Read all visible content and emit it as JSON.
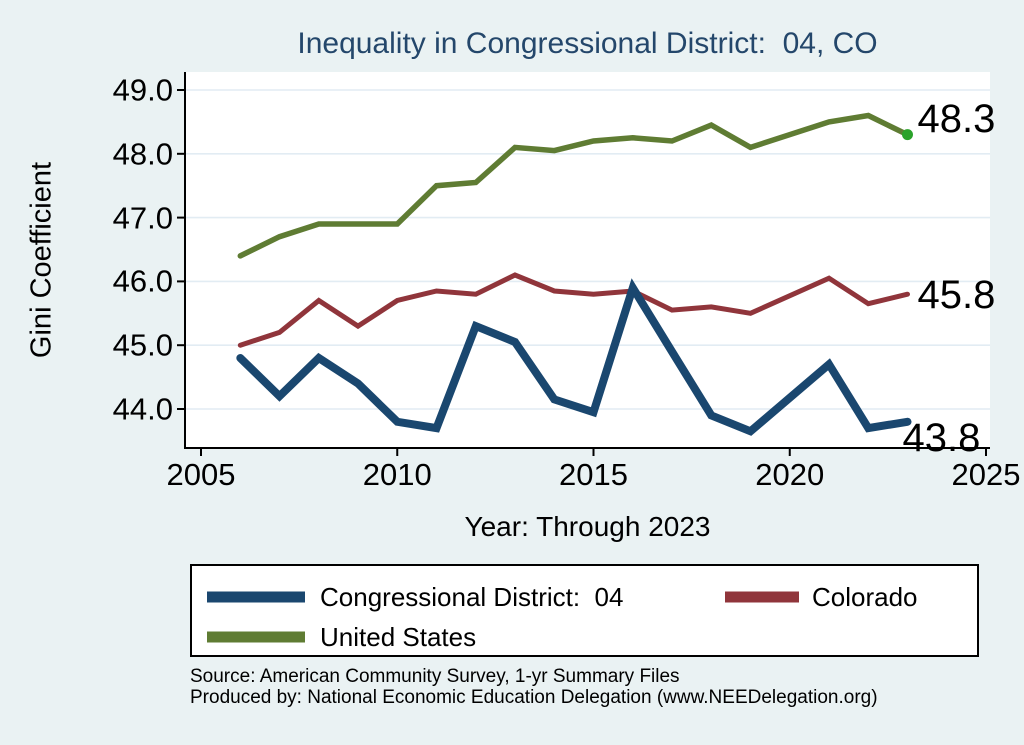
{
  "title": "Inequality in Congressional District:  04, CO",
  "y_axis": {
    "label": "Gini Coefficient",
    "ticks": [
      "49.0",
      "48.0",
      "47.0",
      "46.0",
      "45.0",
      "44.0"
    ]
  },
  "x_axis": {
    "label": "Year: Through 2023",
    "ticks": [
      "2005",
      "2010",
      "2015",
      "2020",
      "2025"
    ]
  },
  "legend": {
    "items": [
      {
        "label": "Congressional District:  04",
        "color": "#1a476f",
        "row": 1,
        "col": 1
      },
      {
        "label": "Colorado",
        "color": "#90353b",
        "row": 1,
        "col": 2
      },
      {
        "label": "United States",
        "color": "#5f7c33",
        "row": 2,
        "col": 1
      }
    ]
  },
  "source": {
    "line1": "Source: American Community Survey, 1-yr Summary Files",
    "line2": "Produced by: National Economic Education Delegation (www.NEEDelegation.org)"
  },
  "colors": {
    "background": "#eaf2f3",
    "plot_background": "#ffffff",
    "gridline": "#e2ecf3",
    "axis": "#000000",
    "title": "#24476b",
    "district_line": "#1a476f",
    "colorado_line": "#90353b",
    "us_line": "#5f7c33",
    "us_end_marker": "#2aa22a"
  },
  "chart_data": {
    "type": "line",
    "x": [
      2006,
      2007,
      2008,
      2009,
      2010,
      2011,
      2012,
      2013,
      2014,
      2015,
      2016,
      2017,
      2018,
      2019,
      2021,
      2022,
      2023
    ],
    "series": [
      {
        "name": "United States",
        "color": "#5f7c33",
        "stroke_width": 5.5,
        "values": [
          46.4,
          46.7,
          46.9,
          46.9,
          46.9,
          47.5,
          47.55,
          48.1,
          48.05,
          48.2,
          48.25,
          48.2,
          48.45,
          48.1,
          48.5,
          48.6,
          48.3
        ],
        "end_label": "48.3",
        "end_marker_color": "#2aa22a"
      },
      {
        "name": "Colorado",
        "color": "#90353b",
        "stroke_width": 5,
        "values": [
          45.0,
          45.2,
          45.7,
          45.3,
          45.7,
          45.85,
          45.8,
          46.1,
          45.85,
          45.8,
          45.85,
          45.55,
          45.6,
          45.5,
          46.05,
          45.65,
          45.8
        ],
        "end_label": "45.8"
      },
      {
        "name": "Congressional District:  04",
        "color": "#1a476f",
        "stroke_width": 8,
        "values": [
          44.8,
          44.2,
          44.8,
          44.4,
          43.8,
          43.7,
          45.3,
          45.05,
          44.15,
          43.95,
          45.9,
          44.9,
          43.9,
          43.65,
          44.7,
          43.7,
          43.8
        ],
        "end_label": "43.8"
      }
    ],
    "title": "Inequality in Congressional District:  04, CO",
    "xlabel": "Year: Through 2023",
    "ylabel": "Gini Coefficient",
    "xlim": [
      2004.6,
      2025.4
    ],
    "ylim": [
      43.4,
      49.3
    ],
    "x_ticks": [
      2005,
      2010,
      2015,
      2020,
      2025
    ],
    "y_ticks": [
      49.0,
      48.0,
      47.0,
      46.0,
      45.0,
      44.0
    ],
    "grid": true,
    "legend_position": "bottom"
  }
}
